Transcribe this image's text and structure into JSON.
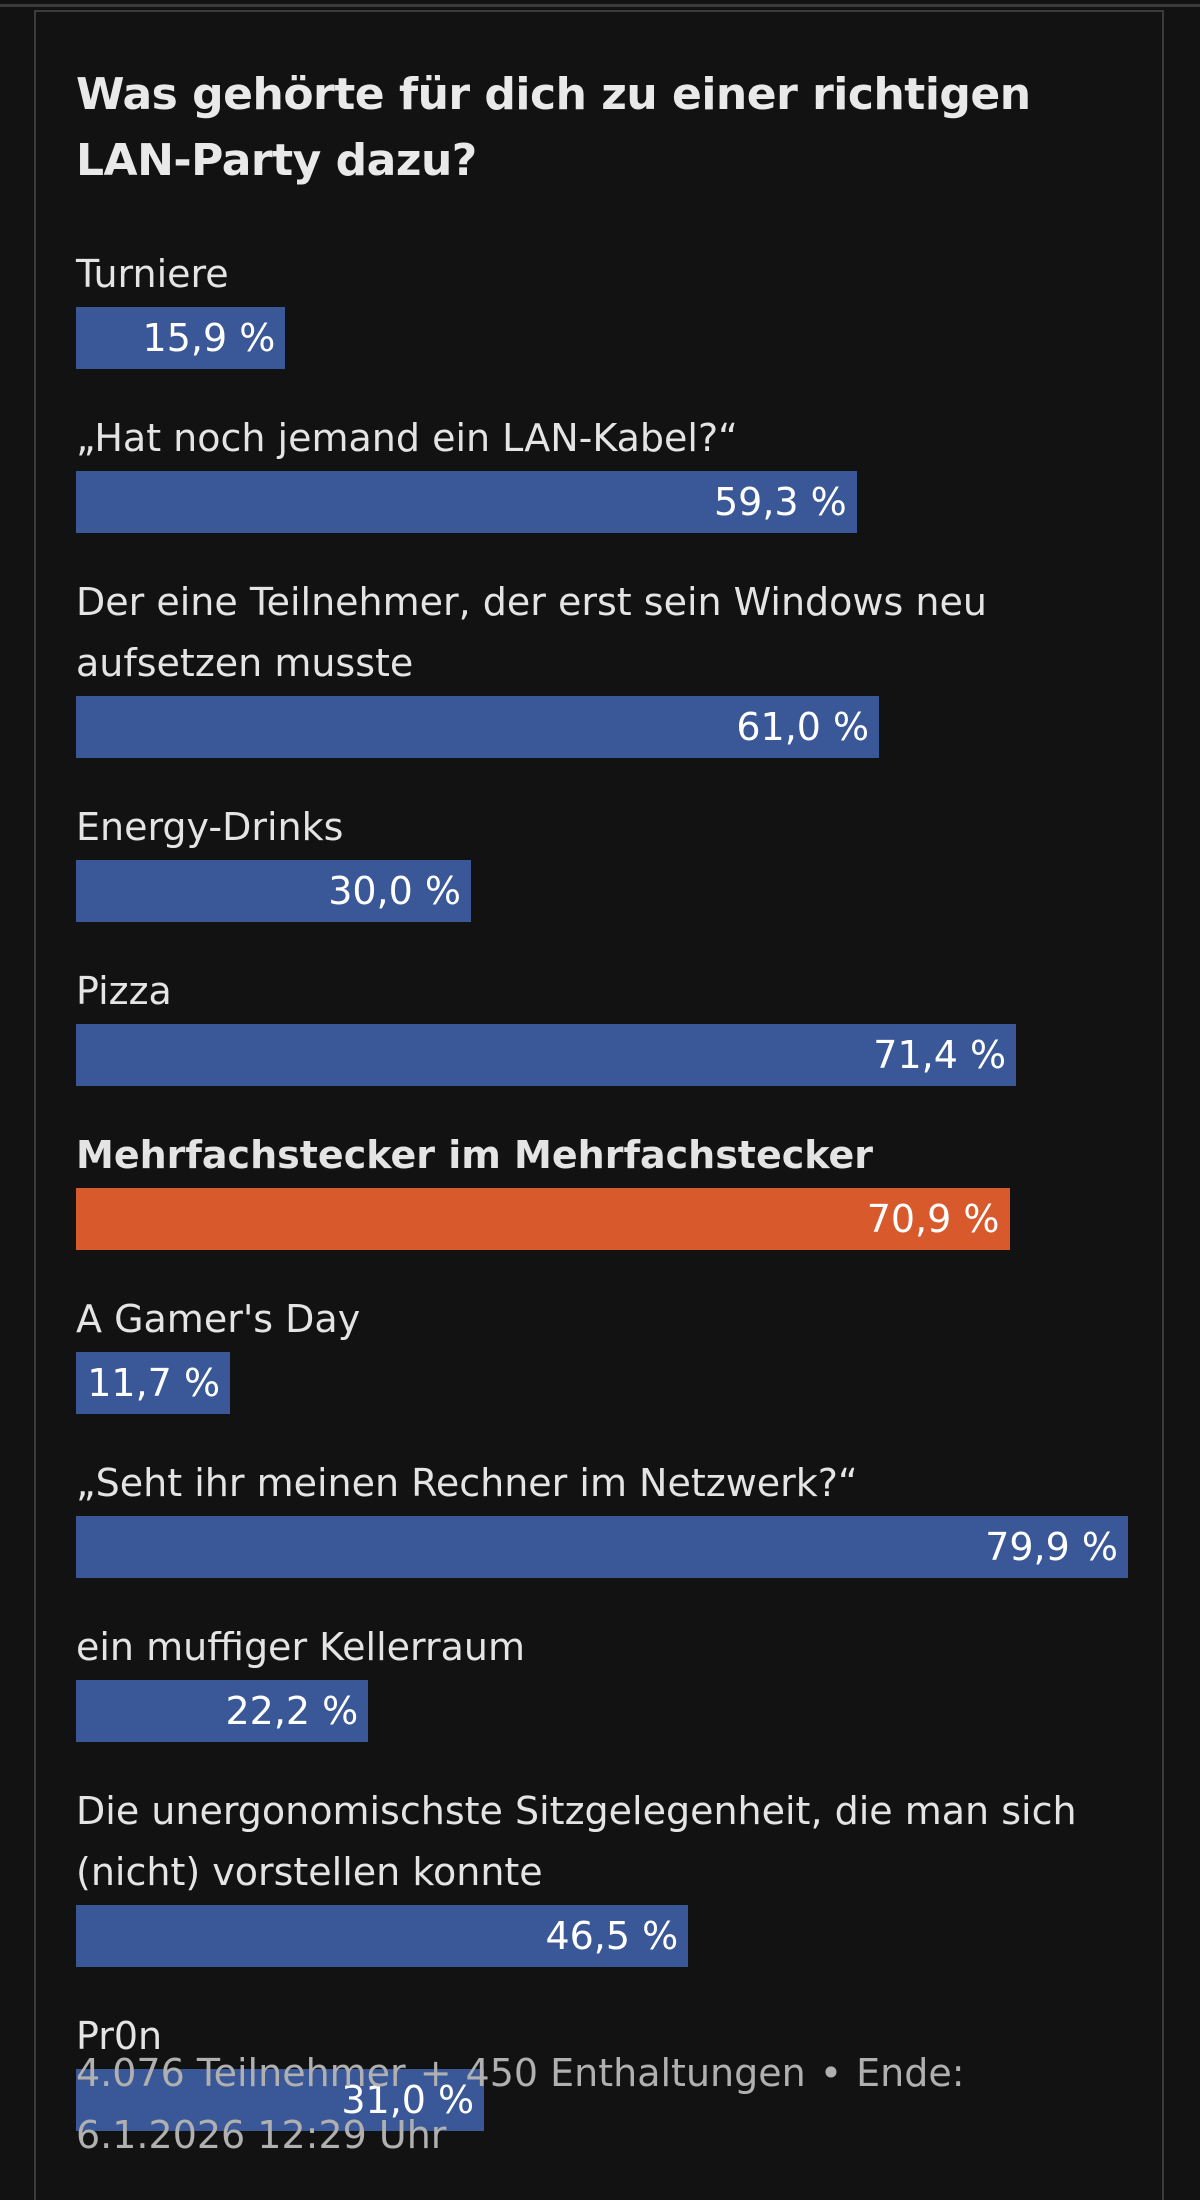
{
  "poll": {
    "title": "Was gehörte für dich zu einer richtigen LAN-Party dazu?",
    "accent_color": "#d8592b",
    "bar_color": "#3a5897",
    "options": [
      {
        "label": "Turniere",
        "value_label": "15,9 %",
        "percent": 15.9,
        "selected": false
      },
      {
        "label": "„Hat noch jemand ein LAN-Kabel?“",
        "value_label": "59,3 %",
        "percent": 59.3,
        "selected": false
      },
      {
        "label": "Der eine Teilnehmer, der erst sein Windows neu aufsetzen musste",
        "value_label": "61,0 %",
        "percent": 61.0,
        "selected": false
      },
      {
        "label": "Energy-Drinks",
        "value_label": "30,0 %",
        "percent": 30.0,
        "selected": false
      },
      {
        "label": "Pizza",
        "value_label": "71,4 %",
        "percent": 71.4,
        "selected": false
      },
      {
        "label": "Mehrfachstecker im Mehrfachstecker",
        "value_label": "70,9 %",
        "percent": 70.9,
        "selected": true
      },
      {
        "label": "A Gamer's Day",
        "value_label": "11,7 %",
        "percent": 11.7,
        "selected": false
      },
      {
        "label": "„Seht ihr meinen Rechner im Netzwerk?“",
        "value_label": "79,9 %",
        "percent": 79.9,
        "selected": false
      },
      {
        "label": "ein muffiger Kellerraum",
        "value_label": "22,2 %",
        "percent": 22.2,
        "selected": false
      },
      {
        "label": "Die unergonomischste Sitzgelegenheit, die man sich (nicht) vorstellen konnte",
        "value_label": "46,5 %",
        "percent": 46.5,
        "selected": false
      },
      {
        "label": "Pr0n",
        "value_label": "31,0 %",
        "percent": 31.0,
        "selected": false
      }
    ],
    "max_percent": 79.9
  },
  "footer": {
    "participants": "4.076 Teilnehmer",
    "plus": "+",
    "abstentions": "450 Enthaltungen",
    "dot": "•",
    "end_label": "Ende:",
    "end_date": "6.1.2026 12:29 Uhr"
  }
}
